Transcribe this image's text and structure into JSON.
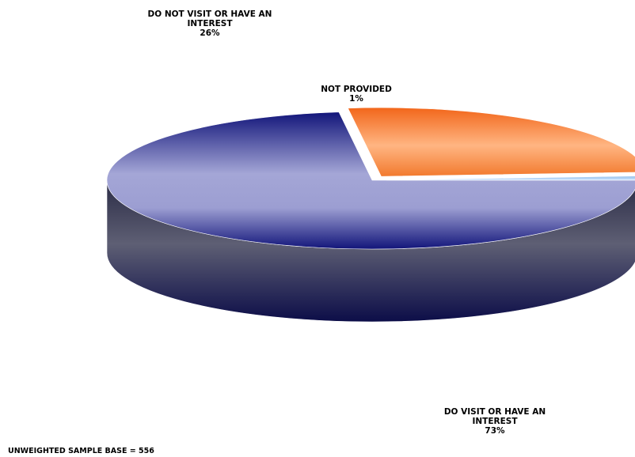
{
  "chart_data": {
    "type": "pie",
    "title": "",
    "three_d": true,
    "start_angle_deg": 0,
    "direction": "clockwise",
    "slices": [
      {
        "id": "visit",
        "label": "DO VISIT OR HAVE AN INTEREST",
        "value": 73,
        "pct_label": "73%",
        "exploded": false,
        "colors": {
          "top_light": "#a4a6d6",
          "top_dark": "#12157a",
          "side_light": "#5e5f74",
          "side_dark": "#0c0d48"
        }
      },
      {
        "id": "not-visit",
        "label": "DO NOT VISIT OR HAVE AN INTEREST",
        "value": 26,
        "pct_label": "26%",
        "exploded": true,
        "colors": {
          "top_light": "#ffb582",
          "top_dark": "#f2661a",
          "side_light": "#a9502a",
          "side_dark": "#5c2a12"
        }
      },
      {
        "id": "not-provided",
        "label": "NOT PROVIDED",
        "value": 1,
        "pct_label": "1%",
        "exploded": true,
        "colors": {
          "top_light": "#cde4ff",
          "top_dark": "#8fbde8",
          "side_light": "#6f8fb0",
          "side_dark": "#3d5a78"
        }
      }
    ],
    "footnote": "UNWEIGHTED SAMPLE BASE = 556"
  }
}
